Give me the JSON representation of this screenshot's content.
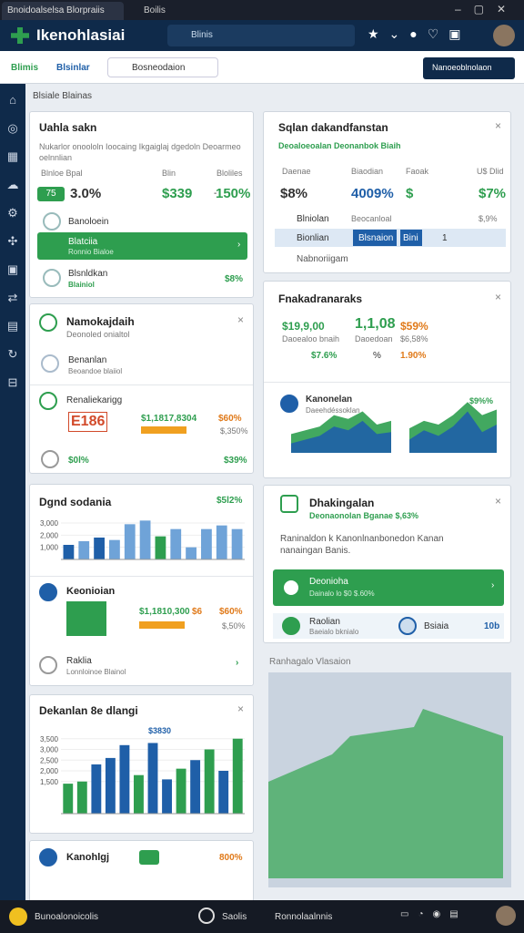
{
  "browser": {
    "tabs": [
      "Bnoidoalselsa Blorpraiis",
      "Boilis"
    ]
  },
  "header": {
    "title": "Ikenohlasiai",
    "search": "Blinis"
  },
  "toolbar": {
    "tabs": [
      "Blimis",
      "Blsinlar"
    ],
    "dropdown": "Bosneodaion",
    "button": "Nanoeoblnolaon"
  },
  "breadcrumb": "Blsiale Blainas",
  "card1": {
    "title": "Uahla sakn",
    "desc": "Nukarlor onoololn Ioocaing Ikgaiglaj dgedoln Deoarmeo oelnnlian",
    "labels": [
      "Blnloe Bpal",
      "Blin",
      "Bloliles"
    ],
    "badge": "75",
    "values": [
      "3.0%",
      "$339",
      "-",
      "150%"
    ],
    "items": [
      "Banoloein",
      "Blatciia",
      "Ronnio Bialoe",
      "Blsnldkan",
      "Blainiol",
      "$8%"
    ]
  },
  "card2": {
    "title": "Namokajdaih",
    "sub": "Deonoled onialtol",
    "items": [
      "Benanlan",
      "Beoandoe blaiiol",
      "Renaliekarigg"
    ],
    "code": "E186",
    "stats": [
      "$1,1817,8304",
      "$60%",
      "$,350%"
    ],
    "foot": [
      "$0l%",
      "$39%"
    ]
  },
  "card3": {
    "title": "Dgnd sodania",
    "value": "$5l2%",
    "chart": {
      "values": [
        1200,
        1500,
        1800,
        1600,
        2900,
        3200,
        1900,
        2500,
        1000,
        2500,
        2800,
        2500
      ],
      "colors": [
        "#1f5fa8",
        "#6fa3d8",
        "#1f5fa8",
        "#6fa3d8",
        "#6fa3d8",
        "#6fa3d8",
        "#2e9e4f",
        "#6fa3d8",
        "#6fa3d8",
        "#6fa3d8",
        "#6fa3d8",
        "#6fa3d8"
      ],
      "ylim": [
        0,
        3600
      ],
      "yticks": [
        {
          "value": 3000,
          "label": "3,000"
        },
        {
          "value": 2000,
          "label": "2,000"
        },
        {
          "value": 1000,
          "label": "1,000"
        }
      ]
    },
    "sub": "Keonioian",
    "stats": [
      "$1,1810,300",
      "$6",
      "$60%",
      "$,50%"
    ],
    "items": [
      "Raklia",
      "Lonnloinoe Blainol"
    ]
  },
  "card4": {
    "title": "Dekanlan 8e dlangi",
    "value": "$3830",
    "chart": {
      "values": [
        1400,
        1500,
        2300,
        2600,
        3200,
        1800,
        3300,
        1600,
        2100,
        2500,
        3000,
        2000,
        3500
      ],
      "colors": [
        "#2e9e4f",
        "#2e9e4f",
        "#1f5fa8",
        "#1f5fa8",
        "#1f5fa8",
        "#2e9e4f",
        "#1f5fa8",
        "#1f5fa8",
        "#2e9e4f",
        "#1f5fa8",
        "#2e9e4f",
        "#1f5fa8",
        "#2e9e4f"
      ],
      "ylim": [
        0,
        4000
      ],
      "yticks": [
        {
          "value": 3500,
          "label": "3,500"
        },
        {
          "value": 3000,
          "label": "3,000"
        },
        {
          "value": 2500,
          "label": "2,500"
        },
        {
          "value": 2000,
          "label": "2,000"
        },
        {
          "value": 1500,
          "label": "1,500"
        }
      ]
    }
  },
  "card5": {
    "title": "Kanohlgj",
    "value": "800%"
  },
  "panel1": {
    "title": "Sqlan dakandfanstan",
    "sub": "Deoaloeoalan  Deonanbok Biaih",
    "heads": [
      "Daenae",
      "Biaodian",
      "Faoak",
      "U$ Dlid"
    ],
    "values": [
      "$8%",
      "4009%",
      "$",
      "$7%"
    ],
    "rows": [
      "Blniolan",
      "Beocanloal",
      "$,9%"
    ],
    "active": [
      "Bionlian",
      "Blsnaion",
      "Bini",
      "1"
    ],
    "last": "Nabnoriigam"
  },
  "panel2": {
    "title": "Fnakadranaraks",
    "stats": [
      "$19,9,00",
      "1,1,08",
      "$59%",
      "$6,58%"
    ],
    "subs": [
      "Daoealoo bnaih",
      "Daoedoan"
    ],
    "more": [
      "$7.6%",
      "%",
      "1.90%"
    ],
    "chart_title": "Kanonelan",
    "chart_sub": "Daeehdéssoklan",
    "chart_value": "$9%%",
    "area1": {
      "series": [
        {
          "color": "#2e9e4f",
          "values": [
            20,
            24,
            28,
            40,
            36,
            44,
            30,
            34
          ]
        },
        {
          "color": "#1f5fa8",
          "values": [
            10,
            14,
            18,
            28,
            24,
            34,
            20,
            22
          ]
        }
      ],
      "ylim": [
        0,
        60
      ]
    },
    "area2": {
      "series": [
        {
          "color": "#2e9e4f",
          "values": [
            26,
            34,
            30,
            40,
            54,
            40,
            46
          ]
        },
        {
          "color": "#1f5fa8",
          "values": [
            14,
            24,
            18,
            28,
            44,
            22,
            30
          ]
        }
      ],
      "ylim": [
        0,
        60
      ]
    }
  },
  "panel3": {
    "title": "Dhakingalan",
    "sub": "Deonaonolan  Bganae $,63%",
    "desc": "Raninaldon k Kanonlnanbonedon Kanan nanaingan Banis.",
    "green": [
      "Deonioha",
      "Dainalo lo $0 $.60%"
    ],
    "items": [
      "Raolian",
      "Baeialo bknialo",
      "Bsiaia",
      "10b"
    ]
  },
  "map": {
    "title": "Ranhagalo Vlasaion"
  },
  "taskbar": {
    "items": [
      "Bunoalonoicolis",
      "Saolis",
      "Ronnolaalnnis"
    ]
  }
}
